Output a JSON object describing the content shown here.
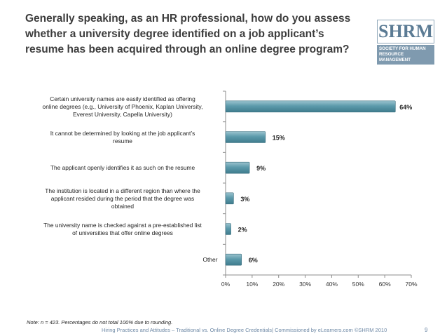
{
  "title": "Generally speaking, as an HR professional, how do you assess whether a university degree identified on a job applicant’s resume has been acquired through an online degree program?",
  "logo": {
    "name": "SHRM",
    "tagline": "Society for Human Resource Management"
  },
  "chart_data": {
    "type": "bar",
    "orientation": "horizontal",
    "categories": [
      "Certain university names are easily identified as offering online degrees (e.g., University of Phoenix, Kaplan University, Everest University, Capella University)",
      "It cannot be determined by looking at the job applicant’s resume",
      "The applicant openly identifies it as such on the resume",
      "The institution is located in a different region than where the applicant resided during the period that the degree was obtained",
      "The university name is checked against a pre-established list of universities that offer online degrees",
      "Other"
    ],
    "values": [
      64,
      15,
      9,
      3,
      2,
      6
    ],
    "value_labels": [
      "64%",
      "15%",
      "9%",
      "3%",
      "2%",
      "6%"
    ],
    "xlim": [
      0,
      70
    ],
    "x_ticks": [
      "0%",
      "10%",
      "20%",
      "30%",
      "40%",
      "50%",
      "60%",
      "70%"
    ],
    "grid": false,
    "bar_color": "#4f8fa0"
  },
  "note": "Note: n = 423. Percentages do not total 100% due to rounding.",
  "footer": "Hiring Practices and Attitudes – Traditional vs. Online Degree Credentials| Commissioned by eLearners.com ©SHRM 2010",
  "page_number": "9"
}
